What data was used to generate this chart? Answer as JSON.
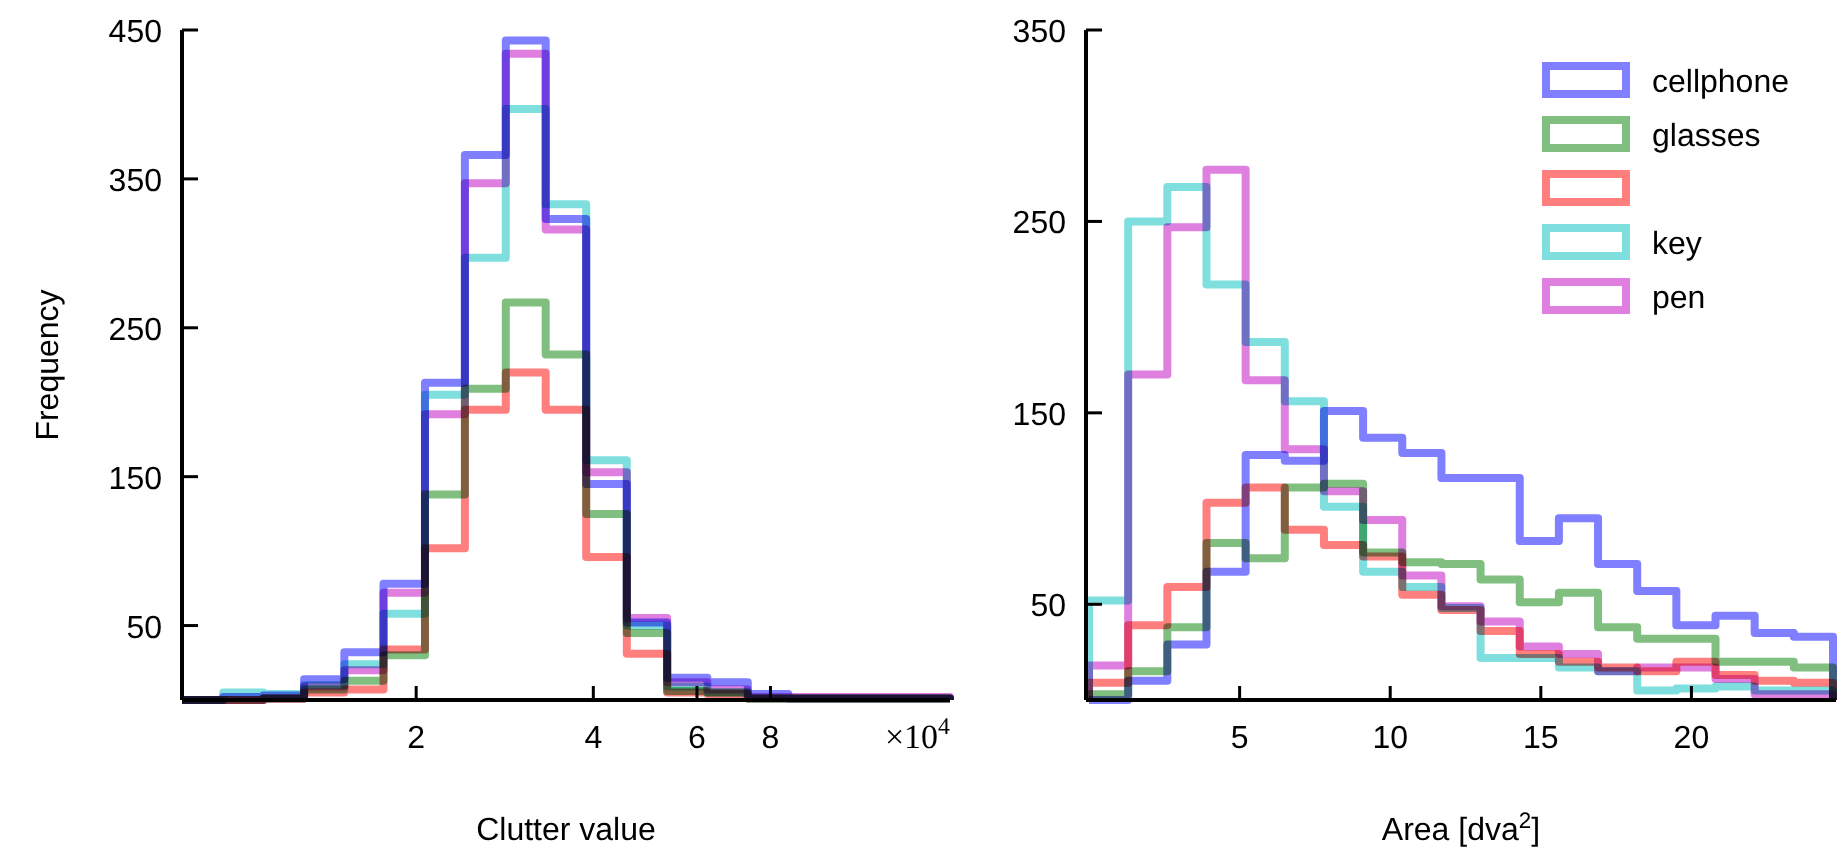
{
  "chart_data": [
    {
      "type": "histogram",
      "xlabel": "Clutter value",
      "ylabel": "Frequency",
      "log": "x",
      "xlim": [
        0.8,
        16.15
      ],
      "xticks": [
        2,
        4,
        6,
        8
      ],
      "ylim": [
        0,
        450
      ],
      "yticks": [
        50,
        150,
        250,
        350,
        450
      ],
      "annotations": [
        "×10$^{4}$"
      ],
      "legend": false,
      "bins": [
        0.8,
        0.94,
        1.1,
        1.29,
        1.51,
        1.76,
        2.07,
        2.42,
        2.84,
        3.32,
        3.89,
        4.56,
        5.34,
        6.25,
        7.32,
        8.58,
        10.05,
        11.77,
        13.79,
        16.15
      ],
      "series": [
        {
          "color": "#7f7fff",
          "values": [
            0,
            2,
            3,
            14,
            32,
            78,
            213,
            366,
            443,
            323,
            145,
            52,
            15,
            12,
            4,
            1,
            1,
            1,
            1
          ]
        },
        {
          "color": "#80bf80",
          "values": [
            0,
            0,
            1,
            7,
            13,
            30,
            138,
            209,
            267,
            232,
            125,
            45,
            6,
            5,
            1,
            1,
            1,
            1,
            1
          ]
        },
        {
          "color": "#ff7f7f",
          "values": [
            0,
            0,
            1,
            5,
            7,
            34,
            102,
            195,
            220,
            195,
            96,
            31,
            5,
            4,
            1,
            1,
            1,
            1,
            1
          ]
        },
        {
          "color": "#7fdfdf",
          "values": [
            0,
            5,
            4,
            10,
            24,
            58,
            205,
            297,
            397,
            333,
            161,
            50,
            9,
            5,
            1,
            1,
            1,
            1,
            1
          ]
        },
        {
          "color": "#df7fdf",
          "values": [
            0,
            0,
            1,
            9,
            20,
            72,
            192,
            347,
            434,
            316,
            153,
            55,
            12,
            7,
            2,
            2,
            2,
            2,
            2
          ]
        }
      ]
    },
    {
      "type": "histogram",
      "xlabel": "Area [dva$^{2}$]",
      "xlim": [
        -0.1,
        24.8
      ],
      "xticks": [
        5,
        10,
        15,
        20
      ],
      "ylim": [
        0,
        350
      ],
      "yticks": [
        50,
        150,
        250,
        350
      ],
      "legend": "top right",
      "bins": [
        0,
        1.3,
        2.6,
        3.9,
        5.2,
        6.5,
        7.8,
        9.1,
        10.4,
        11.7,
        13,
        14.3,
        15.6,
        16.9,
        18.2,
        19.5,
        20.8,
        22.1,
        23.4,
        24.7
      ],
      "series": [
        {
          "name": "cellphone",
          "color": "#7f7fff",
          "values": [
            0,
            10,
            29,
            67,
            128,
            125,
            151,
            137,
            129,
            116,
            116,
            83,
            95,
            71,
            57,
            39,
            44,
            35,
            33
          ]
        },
        {
          "name": "glasses",
          "color": "#80bf80",
          "values": [
            3,
            15,
            38,
            82,
            74,
            111,
            113,
            77,
            72,
            71,
            63,
            51,
            56,
            38,
            32,
            32,
            20,
            20,
            17
          ]
        },
        {
          "color": "#ff7f7f",
          "values": [
            9,
            39,
            59,
            103,
            111,
            89,
            81,
            75,
            55,
            47,
            36,
            24,
            20,
            17,
            15,
            20,
            13,
            10,
            9
          ]
        },
        {
          "name": "key",
          "color": "#7fdfdf",
          "values": [
            52,
            250,
            268,
            217,
            187,
            156,
            101,
            67,
            59,
            48,
            22,
            22,
            17,
            15,
            5,
            6,
            7,
            5,
            5
          ]
        },
        {
          "name": "pen",
          "color": "#df7fdf",
          "values": [
            18,
            170,
            247,
            277,
            167,
            131,
            109,
            94,
            65,
            49,
            41,
            28,
            24,
            15,
            17,
            17,
            11,
            3,
            3
          ]
        }
      ]
    }
  ]
}
